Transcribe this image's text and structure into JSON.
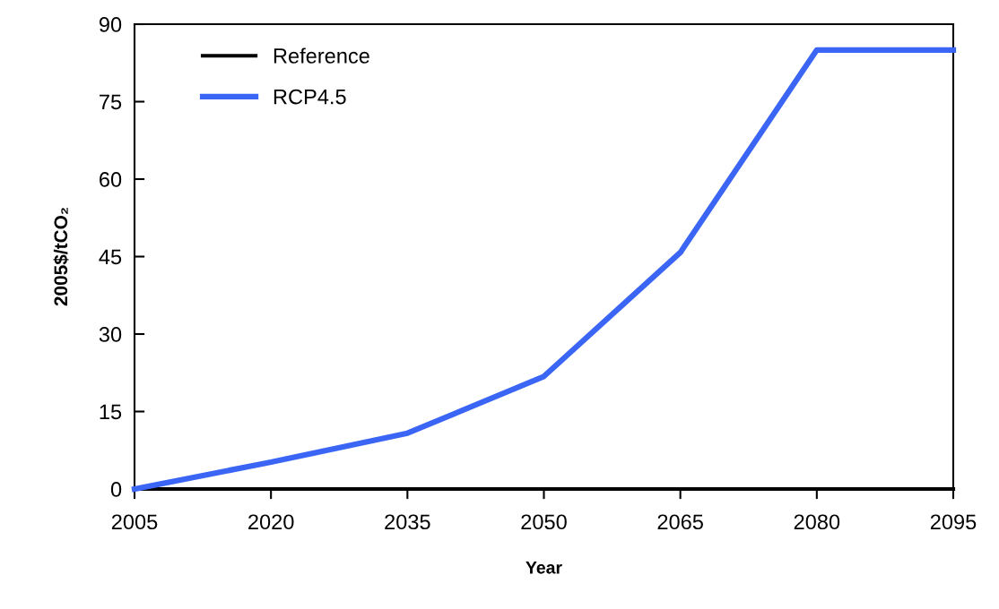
{
  "chart_data": {
    "type": "line",
    "xlabel": "Year",
    "ylabel": "2005$/tCO₂",
    "x": [
      2005,
      2020,
      2035,
      2050,
      2065,
      2080,
      2095
    ],
    "series": [
      {
        "name": "Reference",
        "color": "#000000",
        "values": [
          0,
          0,
          0,
          0,
          0,
          0,
          0
        ]
      },
      {
        "name": "RCP4.5",
        "color": "#3b66f5",
        "values": [
          0,
          5.2,
          10.8,
          21.8,
          45.8,
          85,
          85
        ]
      }
    ],
    "xlim": [
      2005,
      2095
    ],
    "xticks": [
      2005,
      2020,
      2035,
      2050,
      2065,
      2080,
      2095
    ],
    "ylim": [
      0,
      90
    ],
    "yticks": [
      0,
      15,
      30,
      45,
      60,
      75,
      90
    ],
    "grid": false,
    "legend": "top left",
    "marker": "none",
    "line_style": "solid"
  }
}
